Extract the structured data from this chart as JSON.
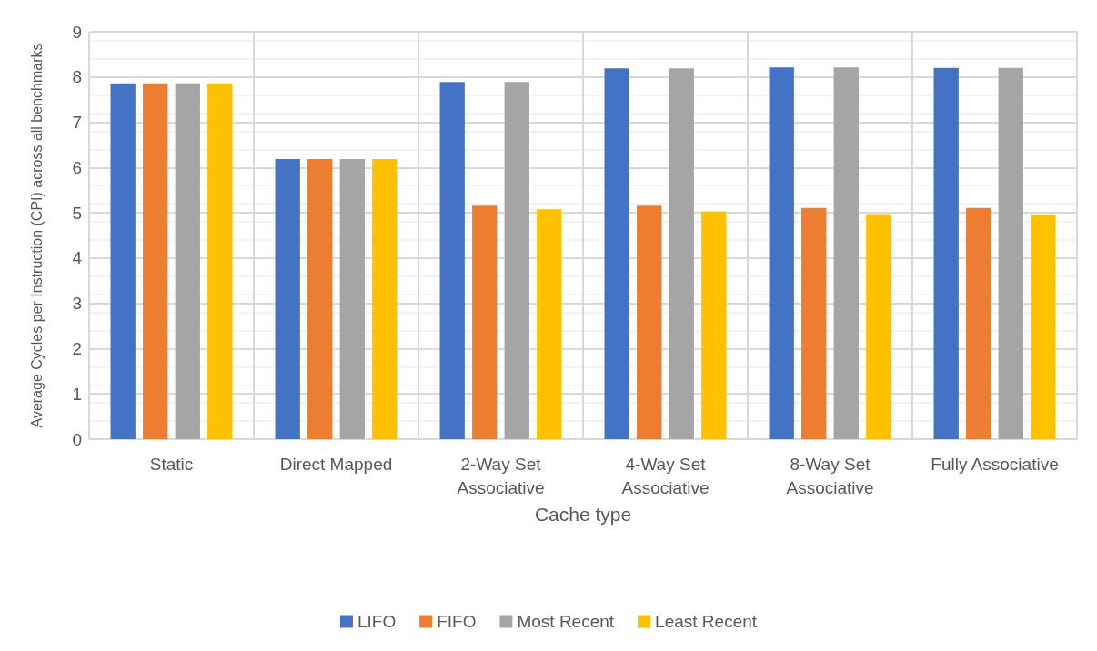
{
  "chart_data": {
    "type": "bar",
    "xlabel": "Cache type",
    "ylabel": "Average Cycles per Instruction (CPI) across all benchmarks",
    "categories": [
      "Static",
      "Direct Mapped",
      "2-Way Set\nAssociative",
      "4-Way Set\nAssociative",
      "8-Way Set\nAssociative",
      "Fully Associative"
    ],
    "series": [
      {
        "name": "LIFO",
        "color": "#4472c4",
        "values": [
          7.86,
          6.19,
          7.89,
          8.19,
          8.21,
          8.2
        ]
      },
      {
        "name": "FIFO",
        "color": "#ed7d31",
        "values": [
          7.86,
          6.19,
          5.16,
          5.16,
          5.11,
          5.11
        ]
      },
      {
        "name": "Most Recent",
        "color": "#a5a5a5",
        "values": [
          7.86,
          6.19,
          7.89,
          8.19,
          8.21,
          8.2
        ]
      },
      {
        "name": "Least Recent",
        "color": "#ffc000",
        "values": [
          7.86,
          6.19,
          5.08,
          5.03,
          4.97,
          4.96
        ]
      }
    ],
    "ylim": [
      0,
      9
    ],
    "yticks": [
      0,
      1,
      2,
      3,
      4,
      5,
      6,
      7,
      8,
      9
    ],
    "grid": true,
    "legend": "bottom"
  }
}
